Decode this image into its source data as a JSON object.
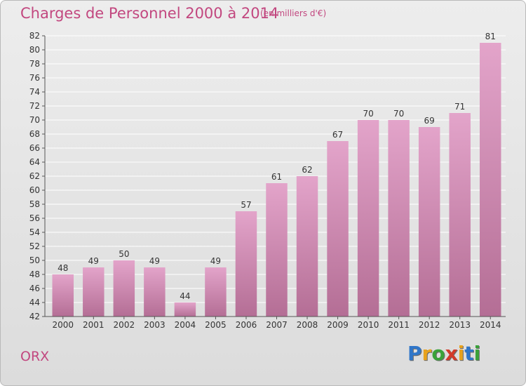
{
  "header": {
    "title": "Charges de Personnel 2000 à 2014",
    "subtitle": "(en milliers d'€)"
  },
  "footer": {
    "place": "ORX",
    "logo_text": "Proxiti"
  },
  "colors": {
    "bar_top": "#e3a4ca",
    "bar_bottom": "#b46e95",
    "title": "#c2477f"
  },
  "chart_data": {
    "type": "bar",
    "title": "Charges de Personnel 2000 à 2014",
    "subtitle": "(en milliers d'€)",
    "xlabel": "",
    "ylabel": "",
    "categories": [
      "2000",
      "2001",
      "2002",
      "2003",
      "2004",
      "2005",
      "2006",
      "2007",
      "2008",
      "2009",
      "2010",
      "2011",
      "2012",
      "2013",
      "2014"
    ],
    "values": [
      48,
      49,
      50,
      49,
      44,
      49,
      57,
      61,
      62,
      67,
      70,
      70,
      69,
      71,
      81
    ],
    "ylim": [
      42,
      82
    ],
    "ytick_step": 2,
    "grid": true,
    "legend": "none"
  }
}
